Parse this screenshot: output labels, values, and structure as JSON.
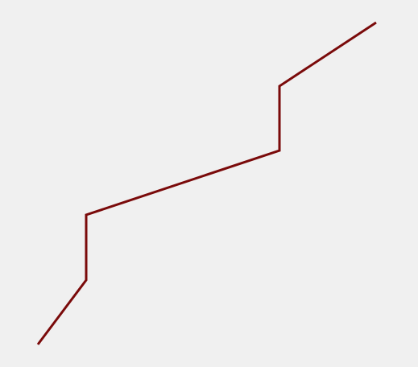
{
  "canvas": {
    "background": "#f0f0f0"
  },
  "polyline": {
    "stroke": "#7a0a0a",
    "vertex_count": 6
  }
}
